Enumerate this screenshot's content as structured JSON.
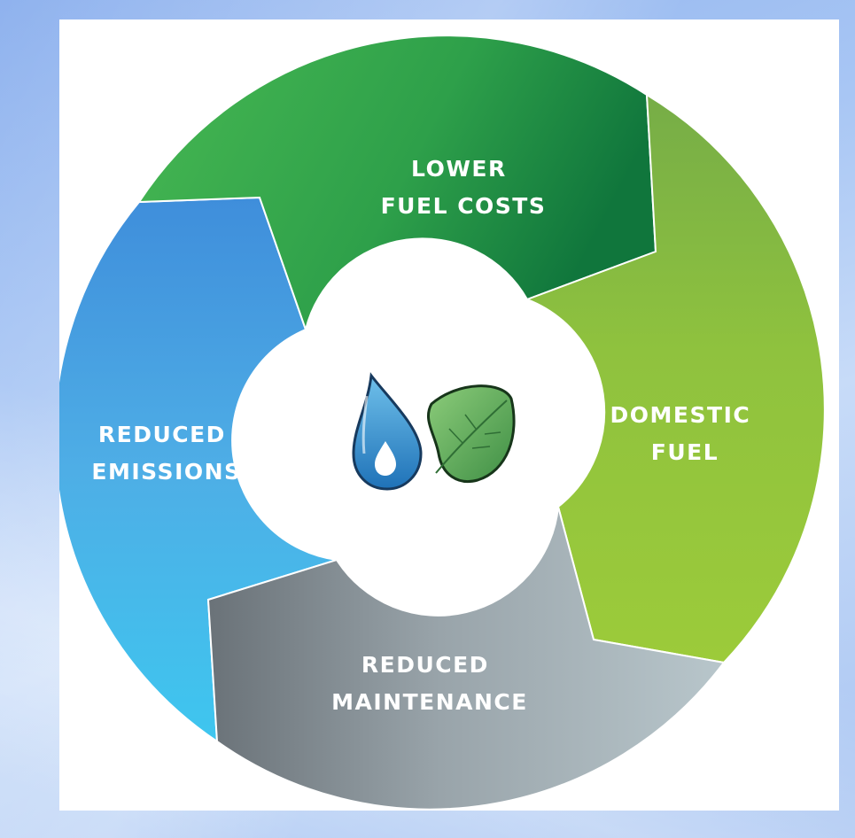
{
  "segments": [
    {
      "id": "lower-fuel-costs",
      "line1": "LOWER",
      "line2": "FUEL COSTS",
      "color": "#2e9e48"
    },
    {
      "id": "domestic-fuel",
      "line1": "DOMESTIC",
      "line2": "FUEL",
      "color": "#8cc03f"
    },
    {
      "id": "reduced-maintenance",
      "line1": "REDUCED",
      "line2": "MAINTENANCE",
      "color": "#8e9aa0"
    },
    {
      "id": "reduced-emissions",
      "line1": "REDUCED",
      "line2": "EMISSIONS",
      "color": "#4aaee3"
    }
  ],
  "center_icon": "water-drop-leaf-icon"
}
